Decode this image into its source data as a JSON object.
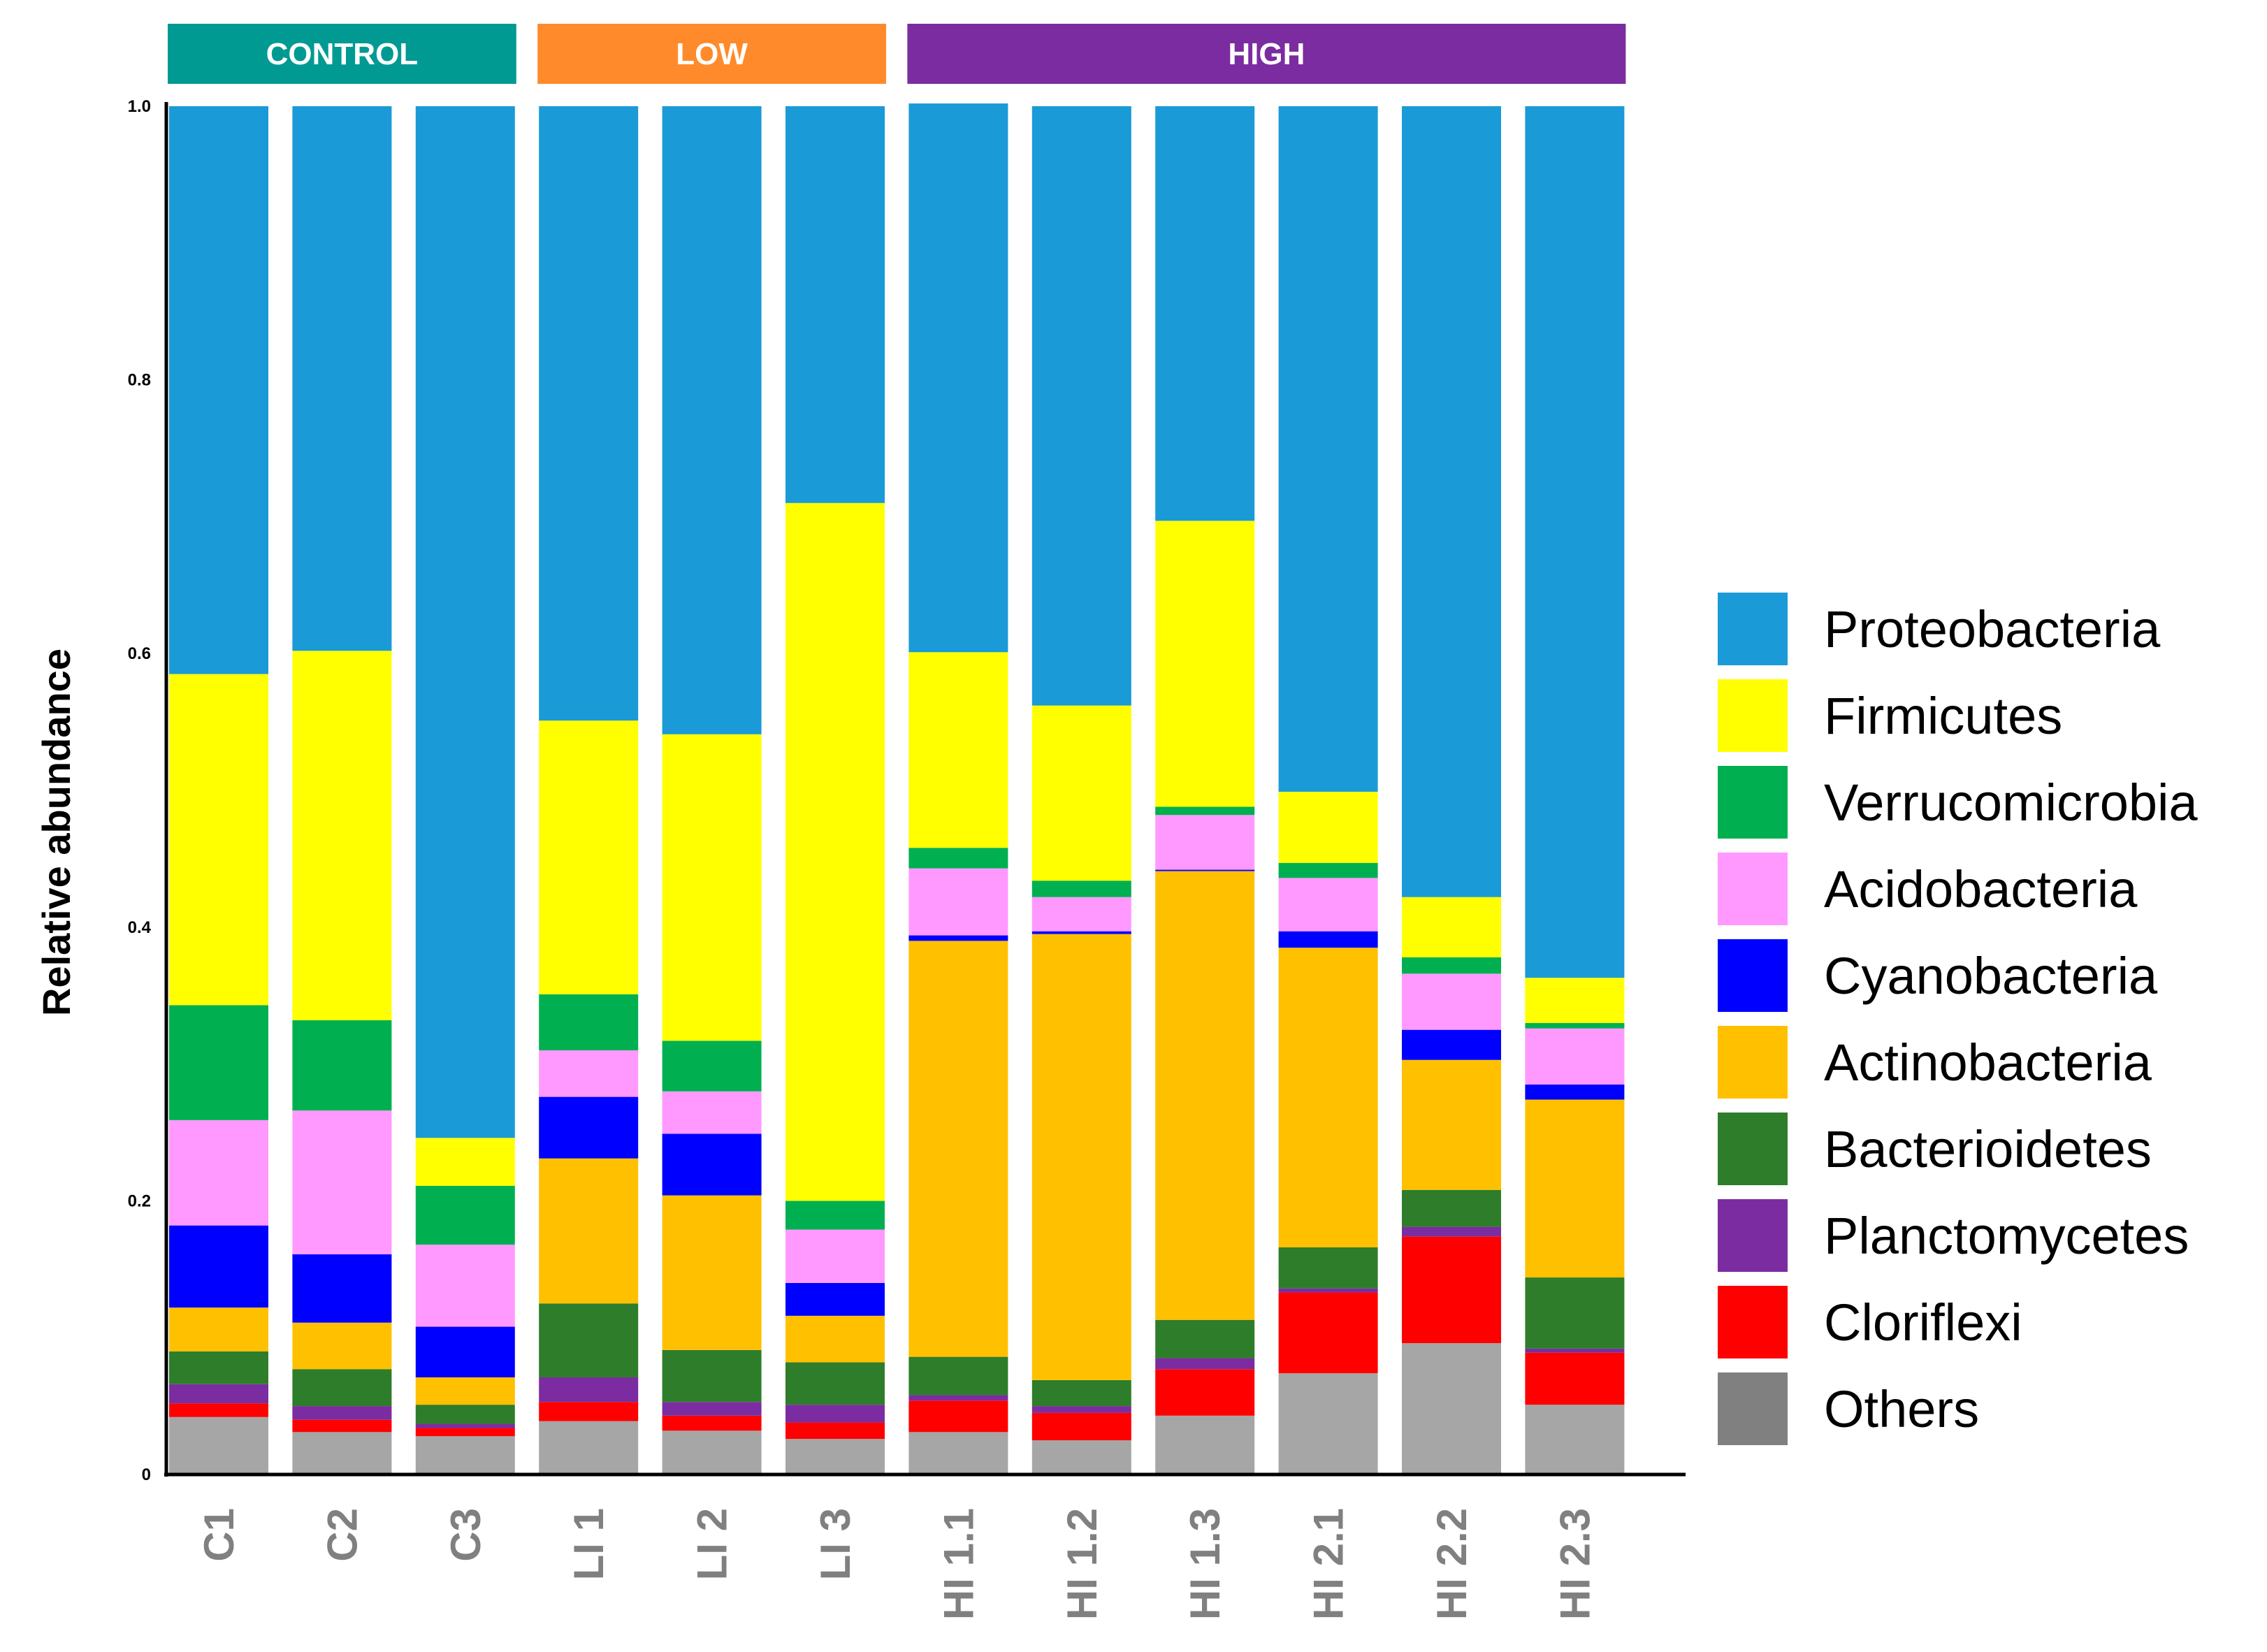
{
  "chart_data": {
    "type": "bar",
    "stacked": true,
    "ylabel": "Relative abundance",
    "xlabel": "",
    "ylim": [
      0,
      1.0
    ],
    "yticks": [
      "0",
      "0.2",
      "0.4",
      "0.6",
      "0.8",
      "1.0"
    ],
    "ytick_values": [
      0,
      0.2,
      0.4,
      0.6,
      0.8,
      1.0
    ],
    "legend_position": "right",
    "groups": [
      {
        "label": "CONTROL",
        "color": "#009a93",
        "categories": [
          "C1",
          "C2",
          "C3"
        ]
      },
      {
        "label": "LOW",
        "color": "#ff8a2b",
        "categories": [
          "LI 1",
          "LI 2",
          "LI 3"
        ]
      },
      {
        "label": "HIGH",
        "color": "#7b2ca0",
        "categories": [
          "HI 1.1",
          "HI 1.2",
          "HI 1.3",
          "HI 2.1",
          "HI 2.2",
          "HI 2.3"
        ]
      }
    ],
    "categories": [
      "C1",
      "C2",
      "C3",
      "LI 1",
      "LI 2",
      "LI 3",
      "HI 1.1",
      "HI 1.2",
      "HI 1.3",
      "HI 2.1",
      "HI 2.2",
      "HI 2.3"
    ],
    "series": [
      {
        "name": "Others",
        "color": "#a6a6a6",
        "values": [
          0.042,
          0.031,
          0.028,
          0.039,
          0.032,
          0.026,
          0.031,
          0.025,
          0.043,
          0.074,
          0.096,
          0.051
        ]
      },
      {
        "name": "Cloriflexi",
        "color": "#ff0000",
        "values": [
          0.01,
          0.009,
          0.006,
          0.014,
          0.011,
          0.012,
          0.023,
          0.02,
          0.034,
          0.059,
          0.078,
          0.038
        ]
      },
      {
        "name": "Planctomycetes",
        "color": "#7b2ca0",
        "values": [
          0.014,
          0.01,
          0.003,
          0.018,
          0.01,
          0.013,
          0.004,
          0.005,
          0.008,
          0.003,
          0.007,
          0.003
        ]
      },
      {
        "name": "Bacterioidetes",
        "color": "#2e7d2a",
        "values": [
          0.024,
          0.027,
          0.014,
          0.054,
          0.038,
          0.031,
          0.028,
          0.019,
          0.028,
          0.03,
          0.027,
          0.052
        ]
      },
      {
        "name": "Actinobacteria",
        "color": "#ffc000",
        "values": [
          0.032,
          0.034,
          0.02,
          0.106,
          0.113,
          0.034,
          0.304,
          0.326,
          0.328,
          0.219,
          0.095,
          0.13
        ]
      },
      {
        "name": "Cyanobacteria",
        "color": "#0000ff",
        "values": [
          0.06,
          0.05,
          0.037,
          0.045,
          0.045,
          0.024,
          0.004,
          0.002,
          0.001,
          0.012,
          0.022,
          0.011
        ]
      },
      {
        "name": "Acidobacteria",
        "color": "#ff99ff",
        "values": [
          0.077,
          0.105,
          0.06,
          0.034,
          0.031,
          0.039,
          0.049,
          0.025,
          0.04,
          0.039,
          0.041,
          0.041
        ]
      },
      {
        "name": "Verrucomicrobia",
        "color": "#00b050",
        "values": [
          0.084,
          0.066,
          0.043,
          0.041,
          0.037,
          0.021,
          0.015,
          0.012,
          0.006,
          0.011,
          0.012,
          0.004
        ]
      },
      {
        "name": "Firmicutes",
        "color": "#ffff00",
        "values": [
          0.242,
          0.27,
          0.035,
          0.2,
          0.224,
          0.51,
          0.143,
          0.128,
          0.209,
          0.052,
          0.044,
          0.033
        ]
      },
      {
        "name": "Proteobacteria",
        "color": "#1a9ad6",
        "values": [
          0.415,
          0.398,
          0.754,
          0.449,
          0.459,
          0.29,
          0.401,
          0.438,
          0.303,
          0.501,
          0.578,
          0.637
        ]
      }
    ],
    "legend_order": [
      "Proteobacteria",
      "Firmicutes",
      "Verrucomicrobia",
      "Acidobacteria",
      "Cyanobacteria",
      "Actinobacteria",
      "Bacterioidetes",
      "Planctomycetes",
      "Cloriflexi",
      "Others"
    ]
  }
}
